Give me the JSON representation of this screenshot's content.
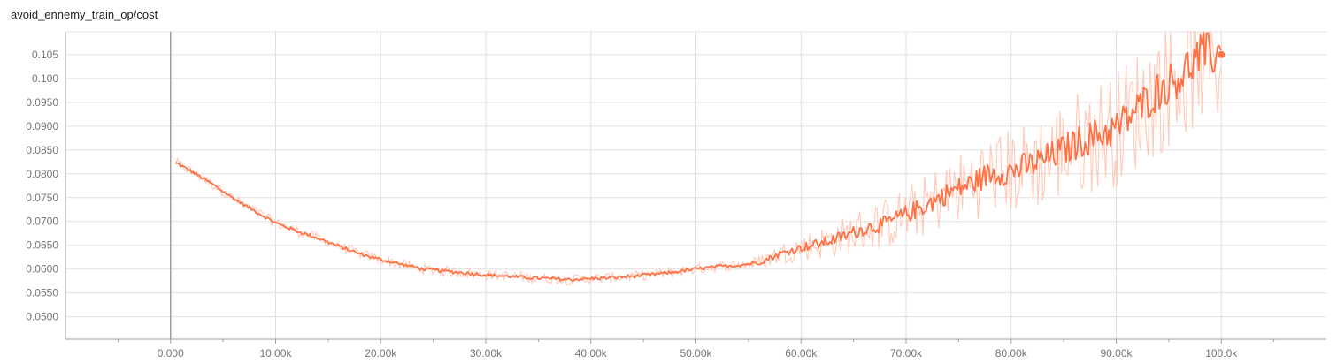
{
  "chart_data": {
    "type": "line",
    "title": "avoid_ennemy_train_op/cost",
    "xlabel": "",
    "ylabel": "",
    "xlim": [
      -10000,
      110000
    ],
    "ylim": [
      0.0453,
      0.1098
    ],
    "x_ticks": [
      {
        "value": 0,
        "label": "0.000"
      },
      {
        "value": 10000,
        "label": "10.00k"
      },
      {
        "value": 20000,
        "label": "20.00k"
      },
      {
        "value": 30000,
        "label": "30.00k"
      },
      {
        "value": 40000,
        "label": "40.00k"
      },
      {
        "value": 50000,
        "label": "50.00k"
      },
      {
        "value": 60000,
        "label": "60.00k"
      },
      {
        "value": 70000,
        "label": "70.00k"
      },
      {
        "value": 80000,
        "label": "80.00k"
      },
      {
        "value": 90000,
        "label": "90.00k"
      },
      {
        "value": 100000,
        "label": "100.0k"
      }
    ],
    "y_ticks": [
      {
        "value": 0.05,
        "label": "0.0500"
      },
      {
        "value": 0.055,
        "label": "0.0550"
      },
      {
        "value": 0.06,
        "label": "0.0600"
      },
      {
        "value": 0.065,
        "label": "0.0650"
      },
      {
        "value": 0.07,
        "label": "0.0700"
      },
      {
        "value": 0.075,
        "label": "0.0750"
      },
      {
        "value": 0.08,
        "label": "0.0800"
      },
      {
        "value": 0.085,
        "label": "0.0850"
      },
      {
        "value": 0.09,
        "label": "0.0900"
      },
      {
        "value": 0.095,
        "label": "0.0950"
      },
      {
        "value": 0.1,
        "label": "0.100"
      },
      {
        "value": 0.105,
        "label": "0.105"
      }
    ],
    "grid": true,
    "legend": "none",
    "colors": {
      "smoothed": "#ff7043",
      "raw": "#ffccbc",
      "grid": "#e0e0e0",
      "axis": "#9e9e9e"
    },
    "series": [
      {
        "role": "smoothed",
        "x": [
          500,
          2000,
          4000,
          6000,
          8000,
          10000,
          12000,
          14000,
          16000,
          18000,
          20000,
          22000,
          24000,
          26000,
          28000,
          30000,
          32000,
          34000,
          36000,
          38000,
          40000,
          42000,
          44000,
          46000,
          48000,
          50000,
          52000,
          54000,
          56000,
          58000,
          60000,
          62000,
          64000,
          66000,
          68000,
          70000,
          72000,
          74000,
          76000,
          78000,
          80000,
          82000,
          84000,
          86000,
          88000,
          90000,
          92000,
          94000,
          96000,
          98000,
          100000
        ],
        "y": [
          0.0823,
          0.0805,
          0.0778,
          0.0748,
          0.0722,
          0.0697,
          0.068,
          0.0665,
          0.0648,
          0.0632,
          0.062,
          0.061,
          0.06,
          0.0596,
          0.0592,
          0.0588,
          0.0585,
          0.0582,
          0.058,
          0.0578,
          0.058,
          0.0582,
          0.0585,
          0.0589,
          0.0594,
          0.06,
          0.0605,
          0.0608,
          0.0614,
          0.0632,
          0.0645,
          0.0655,
          0.0668,
          0.0685,
          0.0695,
          0.0715,
          0.0735,
          0.076,
          0.0778,
          0.08,
          0.0805,
          0.082,
          0.0838,
          0.0862,
          0.088,
          0.0895,
          0.0935,
          0.0975,
          0.1005,
          0.105,
          0.105
        ]
      }
    ],
    "last_point": {
      "x": 100000,
      "y": 0.105
    }
  }
}
